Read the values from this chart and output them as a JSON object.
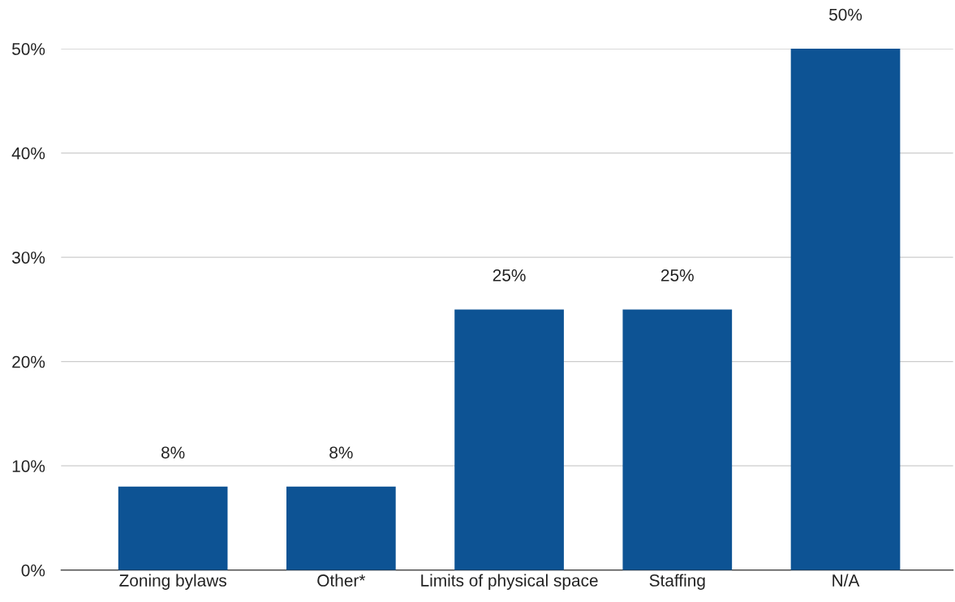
{
  "chart_data": {
    "type": "bar",
    "categories": [
      "Zoning bylaws",
      "Other*",
      "Limits of physical space",
      "Staffing",
      "N/A"
    ],
    "values": [
      8,
      8,
      25,
      25,
      50
    ],
    "value_labels": [
      "8%",
      "8%",
      "25%",
      "25%",
      "50%"
    ],
    "color": "#0d5394",
    "ylim": [
      0,
      50
    ],
    "yticks": [
      {
        "value": 0,
        "label": "0%"
      },
      {
        "value": 10,
        "label": "10%"
      },
      {
        "value": 20,
        "label": "20%"
      },
      {
        "value": 30,
        "label": "30%"
      },
      {
        "value": 40,
        "label": "40%"
      },
      {
        "value": 50,
        "label": "50%"
      }
    ],
    "grid": "y",
    "legend": false
  }
}
